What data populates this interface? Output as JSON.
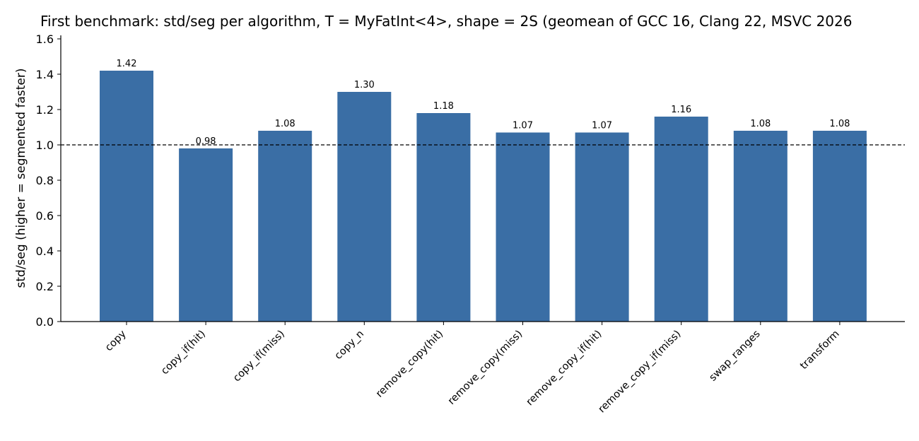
{
  "chart_data": {
    "type": "bar",
    "title": "First benchmark: std/seg per algorithm, T = MyFatInt<4>, shape = 2S (geomean of GCC 16, Clang 22, MSVC 2026",
    "xlabel": "",
    "ylabel": "std/seg  (higher = segmented faster)",
    "ylim": [
      0,
      1.62
    ],
    "yticks": [
      "0.0",
      "0.2",
      "0.4",
      "0.6",
      "0.8",
      "1.0",
      "1.2",
      "1.4",
      "1.6"
    ],
    "reference_line": 1.0,
    "categories": [
      "copy",
      "copy_if(hit)",
      "copy_if(miss)",
      "copy_n",
      "remove_copy(hit)",
      "remove_copy(miss)",
      "remove_copy_if(hit)",
      "remove_copy_if(miss)",
      "swap_ranges",
      "transform"
    ],
    "values": [
      1.42,
      0.98,
      1.08,
      1.3,
      1.18,
      1.07,
      1.07,
      1.16,
      1.08,
      1.08
    ],
    "value_labels": [
      "1.42",
      "0.98",
      "1.08",
      "1.30",
      "1.18",
      "1.07",
      "1.07",
      "1.16",
      "1.08",
      "1.08"
    ],
    "bar_color": "#3a6ea5",
    "grid": false,
    "legend": "none"
  }
}
